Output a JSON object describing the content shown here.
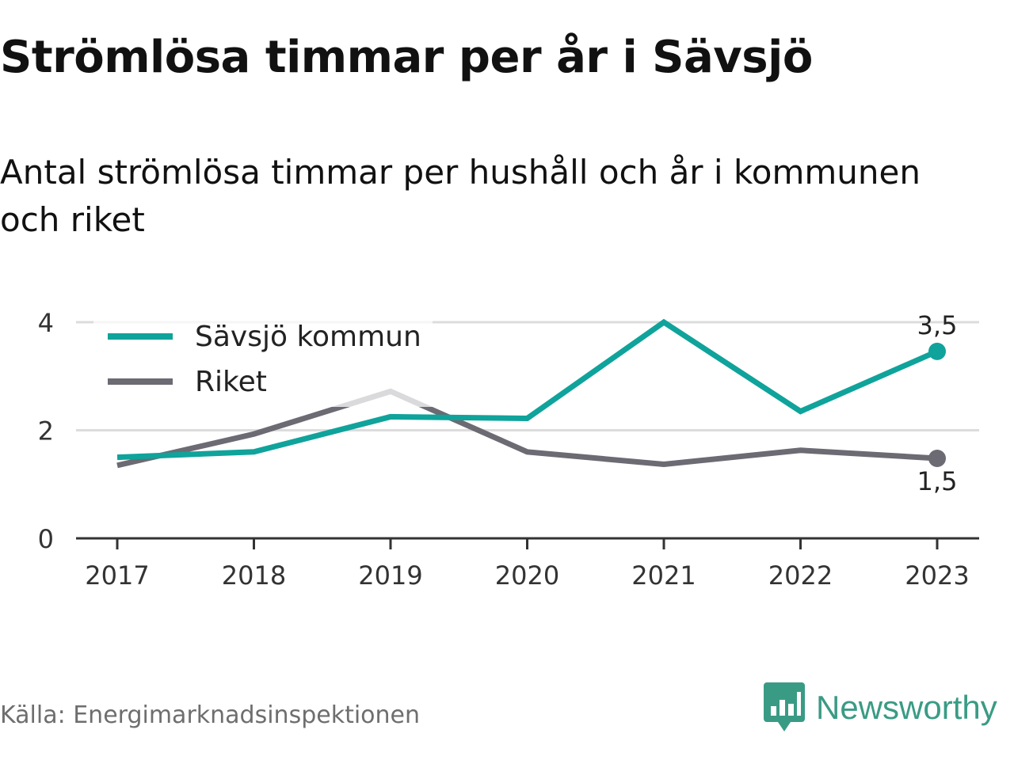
{
  "title": "Strömlösa timmar per år i Sävsjö",
  "subtitle": "Antal strömlösa timmar per hushåll och år i kommunen och riket",
  "source": "Källa: Energimarknadsinspektionen",
  "brand": {
    "name": "Newsworthy",
    "color": "#3a9b85",
    "icon": "newsworthy-logo-icon"
  },
  "chart_data": {
    "type": "line",
    "categories": [
      "2017",
      "2018",
      "2019",
      "2020",
      "2021",
      "2022",
      "2023"
    ],
    "ylim": [
      0,
      4
    ],
    "yticks": [
      0,
      2,
      4
    ],
    "ytick_labels": [
      "0",
      "2",
      "4"
    ],
    "grid": true,
    "legend_position": "top-left",
    "series": [
      {
        "name": "Sävsjö kommun",
        "color": "#0fa39b",
        "values": [
          1.5,
          1.6,
          2.25,
          2.22,
          4.0,
          2.35,
          3.46
        ],
        "end_label": "3,5"
      },
      {
        "name": "Riket",
        "color": "#6c6a72",
        "values": [
          1.35,
          1.93,
          2.72,
          1.6,
          1.37,
          1.63,
          1.48
        ],
        "end_label": "1,5"
      }
    ]
  }
}
